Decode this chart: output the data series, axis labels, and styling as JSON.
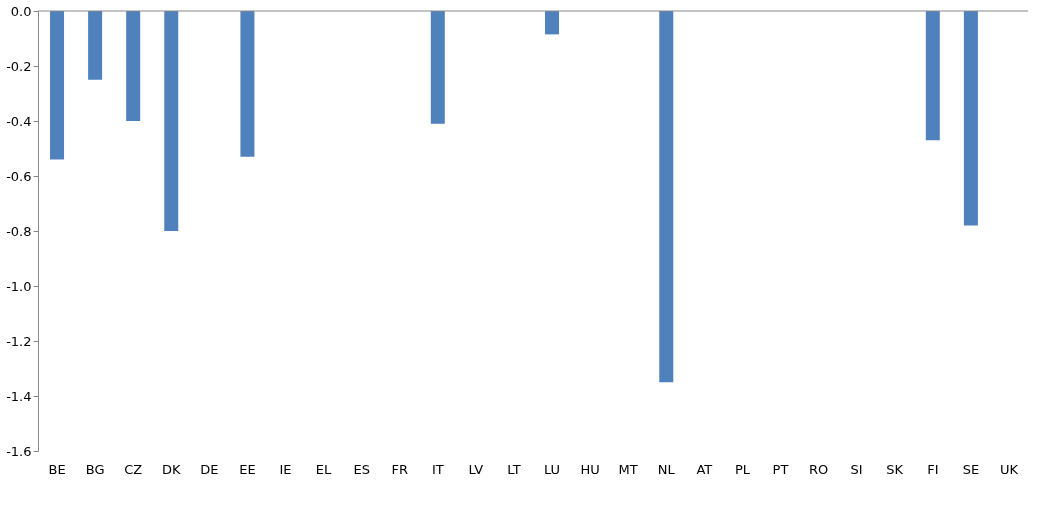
{
  "chart_data": {
    "type": "bar",
    "categories": [
      "BE",
      "BG",
      "CZ",
      "DK",
      "DE",
      "EE",
      "IE",
      "EL",
      "ES",
      "FR",
      "IT",
      "LV",
      "LT",
      "LU",
      "HU",
      "MT",
      "NL",
      "AT",
      "PL",
      "PT",
      "RO",
      "SI",
      "SK",
      "FI",
      "SE",
      "UK"
    ],
    "values": [
      -0.54,
      -0.25,
      -0.4,
      -0.8,
      0,
      -0.53,
      0,
      0,
      0,
      0,
      -0.41,
      0,
      0,
      -0.085,
      0,
      0,
      -1.35,
      0,
      0,
      0,
      0,
      0,
      0,
      -0.47,
      -0.78,
      0
    ],
    "color": "#4f81bd",
    "ylim": [
      -1.6,
      0.0
    ],
    "yticks": [
      {
        "value": 0.0,
        "label": "0.0"
      },
      -0.2,
      -0.4,
      -0.6,
      -0.8,
      {
        "value": -1.0,
        "label": "-1.0"
      },
      -1.2,
      -1.4,
      -1.6
    ],
    "grid": false
  }
}
